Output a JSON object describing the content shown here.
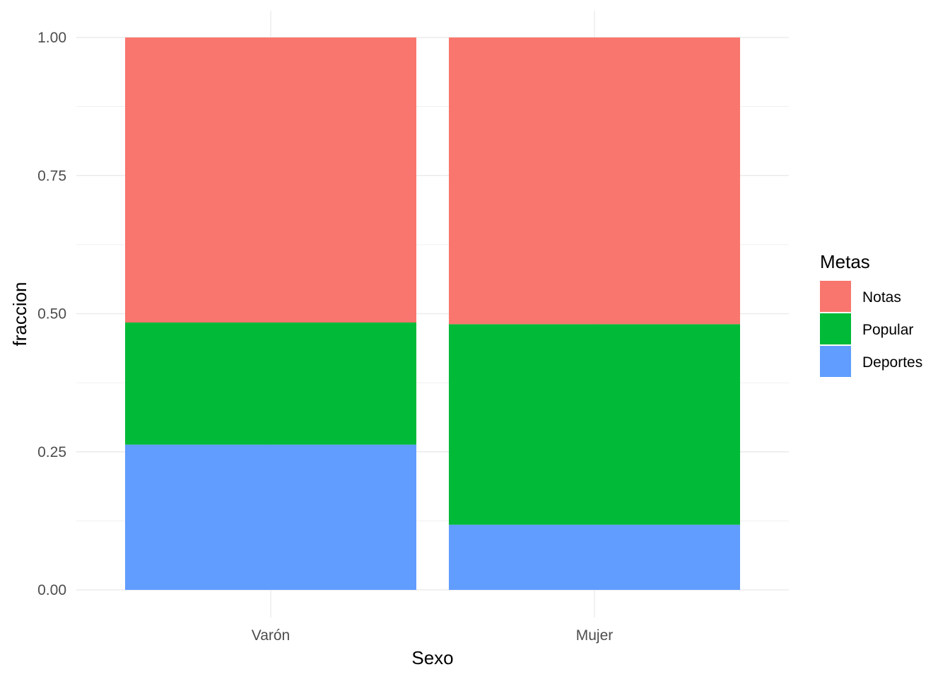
{
  "chart_data": {
    "type": "bar",
    "stacked": true,
    "categories": [
      "Varón",
      "Mujer"
    ],
    "series": [
      {
        "name": "Deportes",
        "values": [
          0.263,
          0.118
        ],
        "color": "#619CFF"
      },
      {
        "name": "Popular",
        "values": [
          0.221,
          0.363
        ],
        "color": "#00BA38"
      },
      {
        "name": "Notas",
        "values": [
          0.516,
          0.519
        ],
        "color": "#F8766D"
      }
    ],
    "xlabel": "Sexo",
    "ylabel": "fraccion",
    "ylim": [
      0,
      1
    ],
    "yticks": [
      "0.00",
      "0.25",
      "0.50",
      "0.75",
      "1.00"
    ],
    "grid": true,
    "legend": {
      "title": "Metas",
      "position": "right",
      "items": [
        "Notas",
        "Popular",
        "Deportes"
      ]
    }
  }
}
